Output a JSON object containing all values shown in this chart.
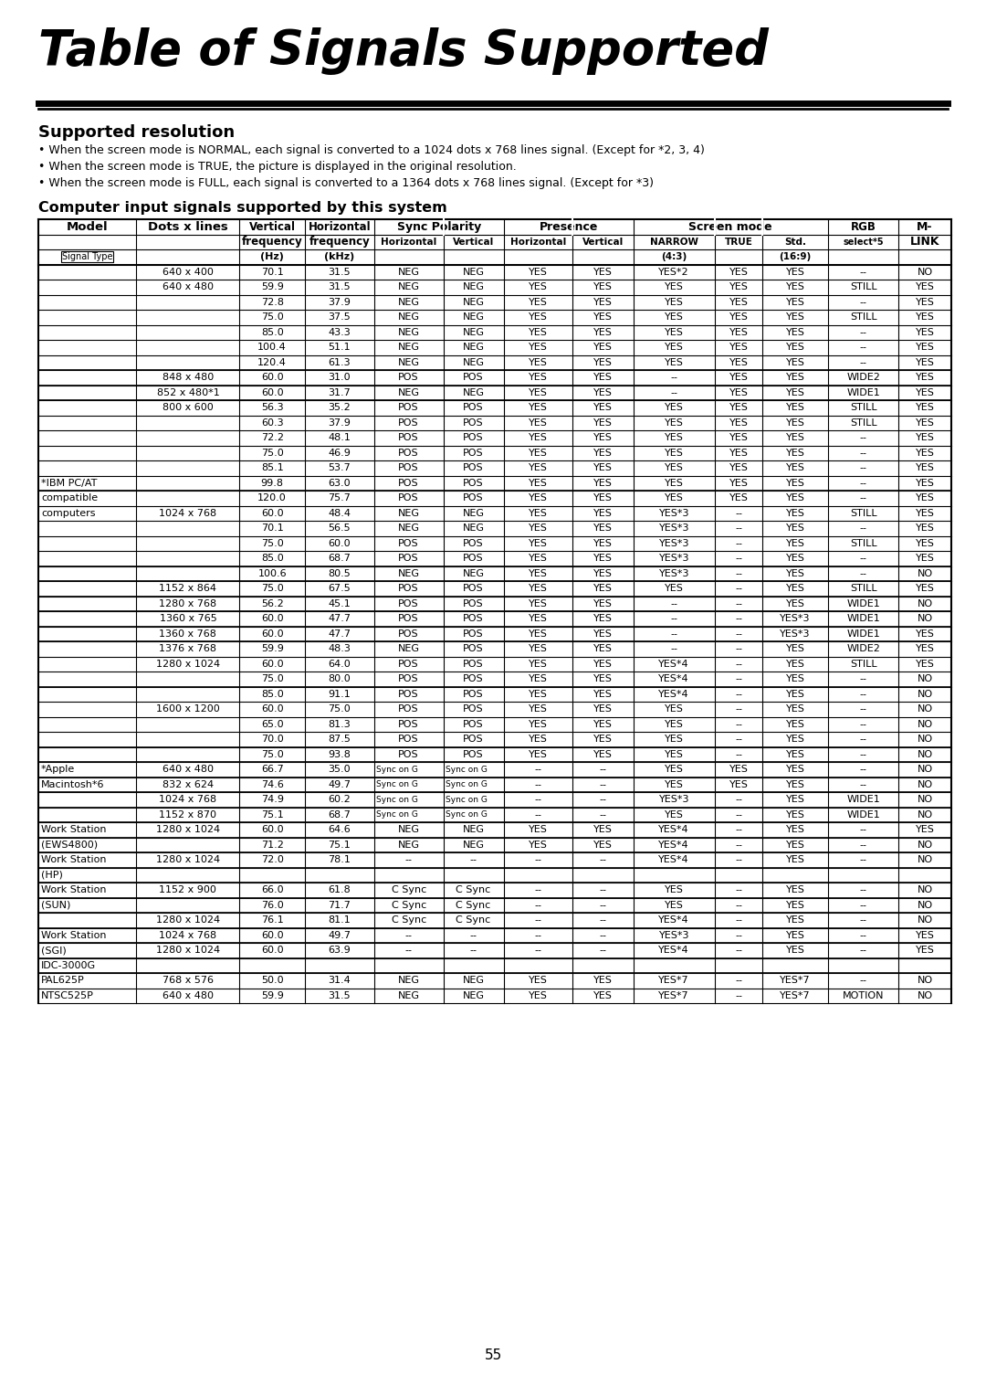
{
  "title": "Table of Signals Supported",
  "subtitle": "Supported resolution",
  "bullets": [
    "When the screen mode is NORMAL, each signal is converted to a 1024 dots x 768 lines signal. (Except for *2, 3, 4)",
    "When the screen mode is TRUE, the picture is displayed in the original resolution.",
    "When the screen mode is FULL, each signal is converted to a 1364 dots x 768 lines signal. (Except for *3)"
  ],
  "table_title": "Computer input signals supported by this system",
  "rows": [
    [
      "",
      "640 x 400",
      "70.1",
      "31.5",
      "NEG",
      "NEG",
      "YES",
      "YES",
      "YES*2",
      "YES",
      "YES",
      "--",
      "NO"
    ],
    [
      "",
      "640 x 480",
      "59.9",
      "31.5",
      "NEG",
      "NEG",
      "YES",
      "YES",
      "YES",
      "YES",
      "YES",
      "STILL",
      "YES"
    ],
    [
      "",
      "",
      "72.8",
      "37.9",
      "NEG",
      "NEG",
      "YES",
      "YES",
      "YES",
      "YES",
      "YES",
      "--",
      "YES"
    ],
    [
      "",
      "",
      "75.0",
      "37.5",
      "NEG",
      "NEG",
      "YES",
      "YES",
      "YES",
      "YES",
      "YES",
      "STILL",
      "YES"
    ],
    [
      "",
      "",
      "85.0",
      "43.3",
      "NEG",
      "NEG",
      "YES",
      "YES",
      "YES",
      "YES",
      "YES",
      "--",
      "YES"
    ],
    [
      "",
      "",
      "100.4",
      "51.1",
      "NEG",
      "NEG",
      "YES",
      "YES",
      "YES",
      "YES",
      "YES",
      "--",
      "YES"
    ],
    [
      "",
      "",
      "120.4",
      "61.3",
      "NEG",
      "NEG",
      "YES",
      "YES",
      "YES",
      "YES",
      "YES",
      "--",
      "YES"
    ],
    [
      "",
      "848 x 480",
      "60.0",
      "31.0",
      "POS",
      "POS",
      "YES",
      "YES",
      "--",
      "YES",
      "YES",
      "WIDE2",
      "YES"
    ],
    [
      "",
      "852 x 480*1",
      "60.0",
      "31.7",
      "NEG",
      "NEG",
      "YES",
      "YES",
      "--",
      "YES",
      "YES",
      "WIDE1",
      "YES"
    ],
    [
      "",
      "800 x 600",
      "56.3",
      "35.2",
      "POS",
      "POS",
      "YES",
      "YES",
      "YES",
      "YES",
      "YES",
      "STILL",
      "YES"
    ],
    [
      "",
      "",
      "60.3",
      "37.9",
      "POS",
      "POS",
      "YES",
      "YES",
      "YES",
      "YES",
      "YES",
      "STILL",
      "YES"
    ],
    [
      "",
      "",
      "72.2",
      "48.1",
      "POS",
      "POS",
      "YES",
      "YES",
      "YES",
      "YES",
      "YES",
      "--",
      "YES"
    ],
    [
      "",
      "",
      "75.0",
      "46.9",
      "POS",
      "POS",
      "YES",
      "YES",
      "YES",
      "YES",
      "YES",
      "--",
      "YES"
    ],
    [
      "",
      "",
      "85.1",
      "53.7",
      "POS",
      "POS",
      "YES",
      "YES",
      "YES",
      "YES",
      "YES",
      "--",
      "YES"
    ],
    [
      "*IBM PC/AT",
      "",
      "99.8",
      "63.0",
      "POS",
      "POS",
      "YES",
      "YES",
      "YES",
      "YES",
      "YES",
      "--",
      "YES"
    ],
    [
      "compatible",
      "",
      "120.0",
      "75.7",
      "POS",
      "POS",
      "YES",
      "YES",
      "YES",
      "YES",
      "YES",
      "--",
      "YES"
    ],
    [
      "computers",
      "1024 x 768",
      "60.0",
      "48.4",
      "NEG",
      "NEG",
      "YES",
      "YES",
      "YES*3",
      "--",
      "YES",
      "STILL",
      "YES"
    ],
    [
      "",
      "",
      "70.1",
      "56.5",
      "NEG",
      "NEG",
      "YES",
      "YES",
      "YES*3",
      "--",
      "YES",
      "--",
      "YES"
    ],
    [
      "",
      "",
      "75.0",
      "60.0",
      "POS",
      "POS",
      "YES",
      "YES",
      "YES*3",
      "--",
      "YES",
      "STILL",
      "YES"
    ],
    [
      "",
      "",
      "85.0",
      "68.7",
      "POS",
      "POS",
      "YES",
      "YES",
      "YES*3",
      "--",
      "YES",
      "--",
      "YES"
    ],
    [
      "",
      "",
      "100.6",
      "80.5",
      "NEG",
      "NEG",
      "YES",
      "YES",
      "YES*3",
      "--",
      "YES",
      "--",
      "NO"
    ],
    [
      "",
      "1152 x 864",
      "75.0",
      "67.5",
      "POS",
      "POS",
      "YES",
      "YES",
      "YES",
      "--",
      "YES",
      "STILL",
      "YES"
    ],
    [
      "",
      "1280 x 768",
      "56.2",
      "45.1",
      "POS",
      "POS",
      "YES",
      "YES",
      "--",
      "--",
      "YES",
      "WIDE1",
      "NO"
    ],
    [
      "",
      "1360 x 765",
      "60.0",
      "47.7",
      "POS",
      "POS",
      "YES",
      "YES",
      "--",
      "--",
      "YES*3",
      "WIDE1",
      "NO"
    ],
    [
      "",
      "1360 x 768",
      "60.0",
      "47.7",
      "POS",
      "POS",
      "YES",
      "YES",
      "--",
      "--",
      "YES*3",
      "WIDE1",
      "YES"
    ],
    [
      "",
      "1376 x 768",
      "59.9",
      "48.3",
      "NEG",
      "POS",
      "YES",
      "YES",
      "--",
      "--",
      "YES",
      "WIDE2",
      "YES"
    ],
    [
      "",
      "1280 x 1024",
      "60.0",
      "64.0",
      "POS",
      "POS",
      "YES",
      "YES",
      "YES*4",
      "--",
      "YES",
      "STILL",
      "YES"
    ],
    [
      "",
      "",
      "75.0",
      "80.0",
      "POS",
      "POS",
      "YES",
      "YES",
      "YES*4",
      "--",
      "YES",
      "--",
      "NO"
    ],
    [
      "",
      "",
      "85.0",
      "91.1",
      "POS",
      "POS",
      "YES",
      "YES",
      "YES*4",
      "--",
      "YES",
      "--",
      "NO"
    ],
    [
      "",
      "1600 x 1200",
      "60.0",
      "75.0",
      "POS",
      "POS",
      "YES",
      "YES",
      "YES",
      "--",
      "YES",
      "--",
      "NO"
    ],
    [
      "",
      "",
      "65.0",
      "81.3",
      "POS",
      "POS",
      "YES",
      "YES",
      "YES",
      "--",
      "YES",
      "--",
      "NO"
    ],
    [
      "",
      "",
      "70.0",
      "87.5",
      "POS",
      "POS",
      "YES",
      "YES",
      "YES",
      "--",
      "YES",
      "--",
      "NO"
    ],
    [
      "",
      "",
      "75.0",
      "93.8",
      "POS",
      "POS",
      "YES",
      "YES",
      "YES",
      "--",
      "YES",
      "--",
      "NO"
    ],
    [
      "*Apple",
      "640 x 480",
      "66.7",
      "35.0",
      "Sync on G",
      "Sync on G",
      "--",
      "--",
      "YES",
      "YES",
      "YES",
      "--",
      "NO"
    ],
    [
      "Macintosh*6",
      "832 x 624",
      "74.6",
      "49.7",
      "Sync on G",
      "Sync on G",
      "--",
      "--",
      "YES",
      "YES",
      "YES",
      "--",
      "NO"
    ],
    [
      "",
      "1024 x 768",
      "74.9",
      "60.2",
      "Sync on G",
      "Sync on G",
      "--",
      "--",
      "YES*3",
      "--",
      "YES",
      "WIDE1",
      "NO"
    ],
    [
      "",
      "1152 x 870",
      "75.1",
      "68.7",
      "Sync on G",
      "Sync on G",
      "--",
      "--",
      "YES",
      "--",
      "YES",
      "WIDE1",
      "NO"
    ],
    [
      "Work Station",
      "1280 x 1024",
      "60.0",
      "64.6",
      "NEG",
      "NEG",
      "YES",
      "YES",
      "YES*4",
      "--",
      "YES",
      "--",
      "YES"
    ],
    [
      "(EWS4800)",
      "",
      "71.2",
      "75.1",
      "NEG",
      "NEG",
      "YES",
      "YES",
      "YES*4",
      "--",
      "YES",
      "--",
      "NO"
    ],
    [
      "Work Station",
      "1280 x 1024",
      "72.0",
      "78.1",
      "--",
      "--",
      "--",
      "--",
      "YES*4",
      "--",
      "YES",
      "--",
      "NO"
    ],
    [
      "(HP)",
      "",
      "",
      "",
      "",
      "",
      "",
      "",
      "",
      "",
      "",
      "",
      ""
    ],
    [
      "Work Station",
      "1152 x 900",
      "66.0",
      "61.8",
      "C Sync",
      "C Sync",
      "--",
      "--",
      "YES",
      "--",
      "YES",
      "--",
      "NO"
    ],
    [
      "(SUN)",
      "",
      "76.0",
      "71.7",
      "C Sync",
      "C Sync",
      "--",
      "--",
      "YES",
      "--",
      "YES",
      "--",
      "NO"
    ],
    [
      "",
      "1280 x 1024",
      "76.1",
      "81.1",
      "C Sync",
      "C Sync",
      "--",
      "--",
      "YES*4",
      "--",
      "YES",
      "--",
      "NO"
    ],
    [
      "Work Station",
      "1024 x 768",
      "60.0",
      "49.7",
      "--",
      "--",
      "--",
      "--",
      "YES*3",
      "--",
      "YES",
      "--",
      "YES"
    ],
    [
      "(SGI)",
      "1280 x 1024",
      "60.0",
      "63.9",
      "--",
      "--",
      "--",
      "--",
      "YES*4",
      "--",
      "YES",
      "--",
      "YES"
    ],
    [
      "IDC-3000G",
      "",
      "",
      "",
      "",
      "",
      "",
      "",
      "",
      "",
      "",
      "",
      ""
    ],
    [
      "PAL625P",
      "768 x 576",
      "50.0",
      "31.4",
      "NEG",
      "NEG",
      "YES",
      "YES",
      "YES*7",
      "--",
      "YES*7",
      "--",
      "NO"
    ],
    [
      "NTSC525P",
      "640 x 480",
      "59.9",
      "31.5",
      "NEG",
      "NEG",
      "YES",
      "YES",
      "YES*7",
      "--",
      "YES*7",
      "MOTION",
      "NO"
    ]
  ],
  "page_number": "55",
  "bg_color": "#ffffff"
}
